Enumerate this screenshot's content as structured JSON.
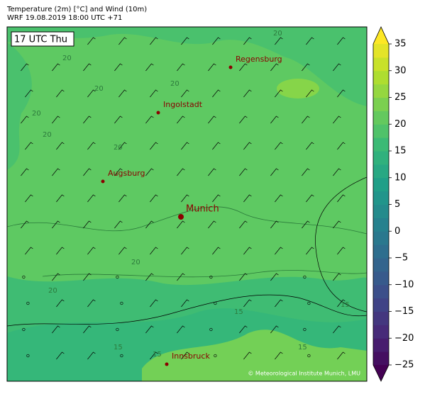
{
  "header": {
    "title_line1": "Temperature (2m) [°C] and Wind (10m)",
    "title_line2": "WRF 19.08.2019 18:00 UTC +71"
  },
  "map": {
    "time_label": "17 UTC Thu",
    "cities": [
      {
        "name": "Regensburg"
      },
      {
        "name": "Ingolstadt"
      },
      {
        "name": "Augsburg"
      },
      {
        "name": "Munich"
      },
      {
        "name": "Innsbruck"
      }
    ],
    "contour_labels": [
      "20",
      "20",
      "20",
      "20",
      "20",
      "20",
      "20",
      "20",
      "20",
      "15",
      "15",
      "15",
      "15",
      "15"
    ],
    "copyright": "© Meteorological Institute Munich, LMU"
  },
  "colorbar": {
    "colormap": "viridis",
    "lim": [
      -25,
      35
    ],
    "level_step": 2.5,
    "ticks": [
      35,
      30,
      25,
      20,
      15,
      10,
      5,
      0,
      {
        "value": -5,
        "label": "−5"
      },
      {
        "value": -10,
        "label": "−10"
      },
      {
        "value": -15,
        "label": "−15"
      },
      {
        "value": -20,
        "label": "−20"
      },
      {
        "value": -25,
        "label": "−25"
      }
    ]
  }
}
